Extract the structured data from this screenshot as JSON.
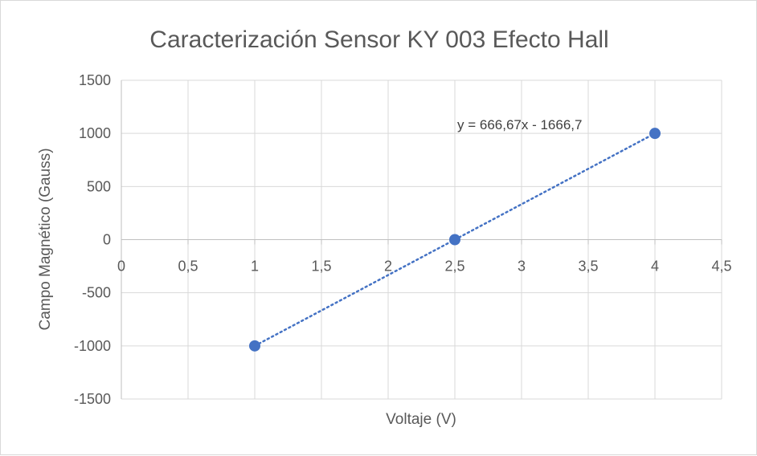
{
  "chart_data": {
    "type": "scatter",
    "title": "Caracterización Sensor KY 003 Efecto Hall",
    "xlabel": "Voltaje (V)",
    "ylabel": "Campo Magnético (Gauss)",
    "xlim": [
      0,
      4.5
    ],
    "ylim": [
      -1500,
      1500
    ],
    "x_ticks": [
      0,
      0.5,
      1,
      1.5,
      2,
      2.5,
      3,
      3.5,
      4,
      4.5
    ],
    "x_tick_labels": [
      "0",
      "0,5",
      "1",
      "1,5",
      "2",
      "2,5",
      "3",
      "3,5",
      "4",
      "4,5"
    ],
    "y_ticks": [
      -1500,
      -1000,
      -500,
      0,
      500,
      1000,
      1500
    ],
    "y_tick_labels": [
      "-1500",
      "-1000",
      "-500",
      "0",
      "500",
      "1000",
      "1500"
    ],
    "grid": true,
    "legend": "none",
    "series": [
      {
        "x": [
          1,
          2.5,
          4
        ],
        "y": [
          -1000,
          0,
          1000
        ],
        "color": "#4472c4"
      }
    ],
    "trendline": {
      "type": "linear",
      "slope": 666.67,
      "intercept": -1666.7,
      "x_range": [
        1,
        4
      ],
      "equation_label": "y = 666,67x - 1666,7",
      "color": "#4472c4",
      "style": "dotted"
    },
    "colors": {
      "grid": "#d9d9d9",
      "text": "#595959"
    }
  }
}
